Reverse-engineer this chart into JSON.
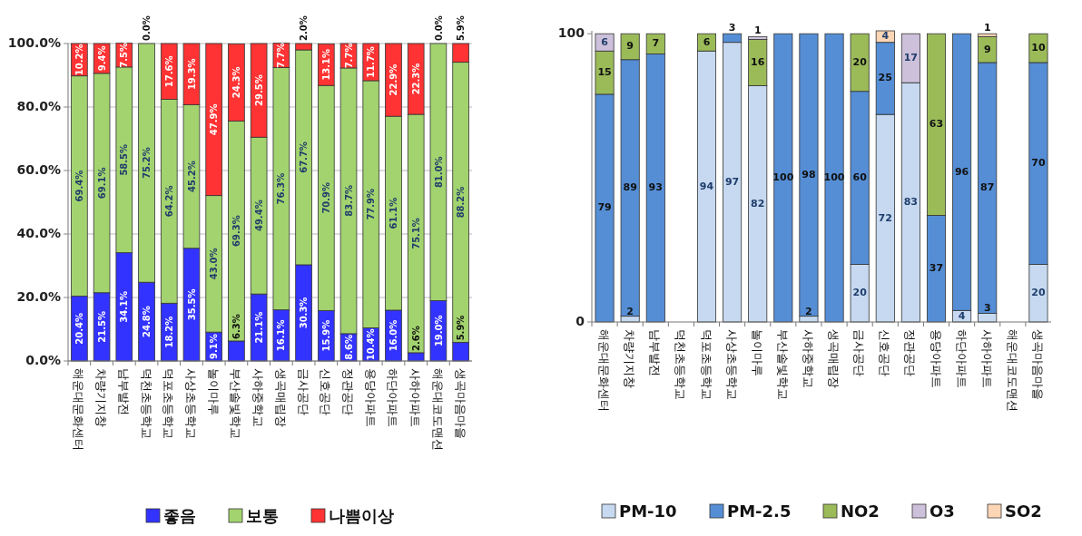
{
  "chart_data": [
    {
      "type": "bar",
      "stacked": true,
      "categories": [
        "해운대문화센터",
        "차량기지창",
        "남부발전",
        "덕천초등학교",
        "덕포초등학교",
        "사상초등학교",
        "놀이마루",
        "부산솔빛학교",
        "사하중학교",
        "생곡매립장",
        "금사공단",
        "신호공단",
        "정관공단",
        "용당아파트",
        "하단아파트",
        "사하아파트",
        "해운대코도맨션",
        "생곡마음마을"
      ],
      "series": [
        {
          "name": "좋음",
          "color": "#3333ff",
          "values": [
            20.4,
            21.5,
            34.1,
            24.8,
            18.2,
            35.5,
            9.1,
            6.3,
            21.1,
            16.1,
            30.3,
            15.9,
            8.6,
            10.4,
            16.0,
            2.6,
            19.0,
            5.9
          ],
          "value_labels": [
            "20.4%",
            "21.5%",
            "34.1%",
            "24.8%",
            "18.2%",
            "35.5%",
            "9.1%",
            "6.3%",
            "21.1%",
            "16.1%",
            "30.3%",
            "15.9%",
            "8.6%",
            "10.4%",
            "16.0%",
            "2.6%",
            "19.0%",
            "5.9%"
          ]
        },
        {
          "name": "보통",
          "color": "#a3d36f",
          "values": [
            69.4,
            69.1,
            58.5,
            75.2,
            64.2,
            45.2,
            43.0,
            69.3,
            49.4,
            76.3,
            67.7,
            70.9,
            83.7,
            77.9,
            61.1,
            75.1,
            81.0,
            88.2
          ],
          "value_labels": [
            "69.4%",
            "69.1%",
            "58.5%",
            "75.2%",
            "64.2%",
            "45.2%",
            "43.0%",
            "69.3%",
            "49.4%",
            "76.3%",
            "67.7%",
            "70.9%",
            "83.7%",
            "77.9%",
            "61.1%",
            "75.1%",
            "81.0%",
            "88.2%"
          ]
        },
        {
          "name": "나쁨이상",
          "color": "#ff3333",
          "values": [
            10.2,
            9.4,
            7.5,
            0.0,
            17.6,
            19.3,
            47.9,
            24.3,
            29.5,
            7.7,
            2.0,
            13.1,
            7.7,
            11.7,
            22.9,
            22.3,
            0.0,
            5.9
          ],
          "value_labels": [
            "10.2%",
            "9.4%",
            "7.5%",
            "0.0%",
            "17.6%",
            "19.3%",
            "47.9%",
            "24.3%",
            "29.5%",
            "7.7%",
            "2.0%",
            "13.1%",
            "7.7%",
            "11.7%",
            "22.9%",
            "22.3%",
            "0.0%",
            "5.9%"
          ]
        }
      ],
      "ylim": [
        0,
        100
      ],
      "yticks": [
        {
          "value": 0,
          "label": "0.0%"
        },
        {
          "value": 20,
          "label": "20.0%"
        },
        {
          "value": 40,
          "label": "40.0%"
        },
        {
          "value": 60,
          "label": "60.0%"
        },
        {
          "value": 80,
          "label": "80.0%"
        },
        {
          "value": 100,
          "label": "100.0%"
        }
      ],
      "grid": "y",
      "legend": "bottom"
    },
    {
      "type": "bar",
      "stacked": true,
      "categories": [
        "해운대문화센터",
        "차량기지창",
        "남부발전",
        "덕천초등학교",
        "덕포초등학교",
        "사상초등학교",
        "놀이마루",
        "부산솔빛학교",
        "사하중학교",
        "생곡매립장",
        "금사공단",
        "신호공단",
        "정관공단",
        "용당아파트",
        "하단아파트",
        "사하아파트",
        "해운대코도맨션",
        "생곡마음마을"
      ],
      "series": [
        {
          "name": "PM-10",
          "color": "#c6d9f0",
          "values": [
            null,
            2,
            null,
            null,
            94,
            97,
            82,
            null,
            2,
            null,
            20,
            72,
            83,
            null,
            4,
            3,
            null,
            20
          ]
        },
        {
          "name": "PM-2.5",
          "color": "#558ed5",
          "values": [
            79,
            89,
            93,
            null,
            null,
            3,
            null,
            100,
            98,
            100,
            60,
            25,
            null,
            37,
            96,
            87,
            null,
            70
          ]
        },
        {
          "name": "NO2",
          "color": "#9bbb59",
          "values": [
            15,
            9,
            7,
            null,
            6,
            null,
            16,
            null,
            null,
            null,
            20,
            null,
            null,
            63,
            null,
            9,
            null,
            10
          ]
        },
        {
          "name": "O3",
          "color": "#ccc0da",
          "values": [
            6,
            null,
            null,
            null,
            null,
            null,
            1,
            null,
            null,
            null,
            null,
            null,
            17,
            null,
            null,
            null,
            null,
            null
          ]
        },
        {
          "name": "SO2",
          "color": "#fcd5b4",
          "values": [
            null,
            null,
            null,
            null,
            null,
            null,
            null,
            null,
            null,
            null,
            null,
            4,
            null,
            null,
            null,
            1,
            null,
            null
          ]
        }
      ],
      "ylim": [
        0,
        101
      ],
      "yticks": [
        0,
        100
      ],
      "data_labels": true,
      "legend": "bottom"
    }
  ]
}
